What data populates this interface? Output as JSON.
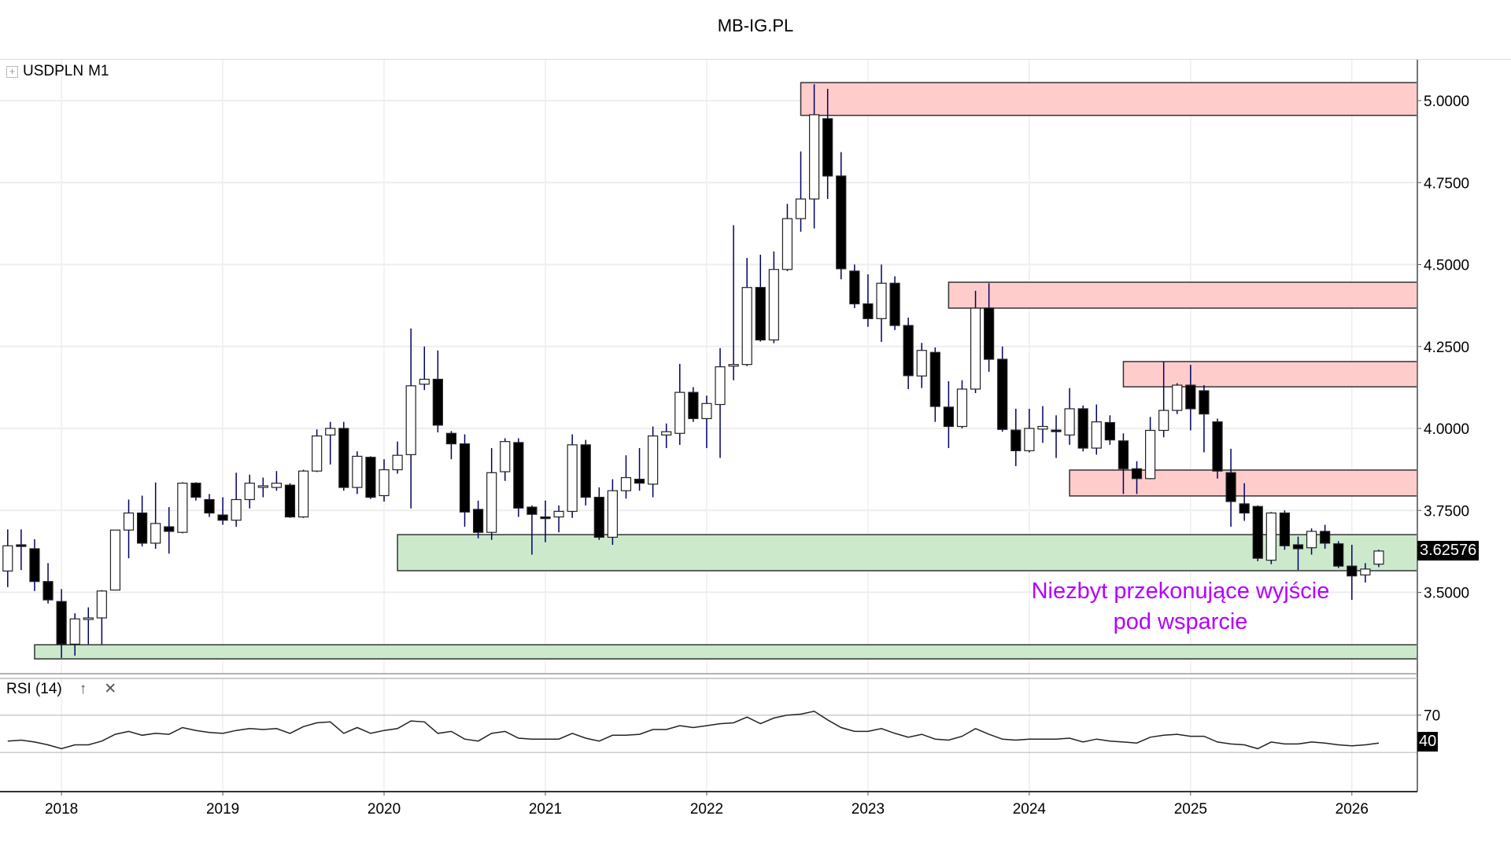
{
  "header": {
    "title": "MB-IG.PL"
  },
  "legend": {
    "expand_icon": "plus-box-icon",
    "symbol": "USDPLN",
    "timeframe": "M1"
  },
  "rsi_legend": {
    "label": "RSI (14)",
    "up_icon": "arrow-up-icon",
    "close_icon": "close-icon"
  },
  "annotation": {
    "line1": "Niezbyt przekonujące wyjście",
    "line2": "pod wsparcie",
    "color": "#b400ff"
  },
  "chart_data": [
    {
      "type": "candlestick",
      "symbol": "USDPLN",
      "timeframe": "M1",
      "y_ticks": [
        "5.0000",
        "4.7500",
        "4.5000",
        "4.2500",
        "4.0000",
        "3.7500",
        "3.5000"
      ],
      "x_ticks": [
        "2018",
        "2019",
        "2020",
        "2021",
        "2022",
        "2023",
        "2024",
        "2025",
        "2026"
      ],
      "last_price": "3.62576",
      "colors": {
        "up_body": "#ffffff",
        "down_body": "#000000",
        "wick": "#000066",
        "resistance_zone": "#ffcccc",
        "support_zone": "#cce9cc"
      },
      "zones": [
        {
          "kind": "resistance",
          "from": "2022-08",
          "low": 4.955,
          "high": 5.055
        },
        {
          "kind": "resistance",
          "from": "2023-07",
          "low": 4.367,
          "high": 4.446
        },
        {
          "kind": "resistance",
          "from": "2024-08",
          "low": 4.127,
          "high": 4.204
        },
        {
          "kind": "resistance",
          "from": "2024-04",
          "low": 3.794,
          "high": 3.873
        },
        {
          "kind": "support",
          "from": "2020-02",
          "low": 3.566,
          "high": 3.676
        },
        {
          "kind": "support",
          "from": "2017-11",
          "low": 3.297,
          "high": 3.34
        }
      ],
      "candles_format": [
        "month",
        "open",
        "high",
        "low",
        "close"
      ],
      "candles": [
        [
          "2017-09",
          3.565,
          3.692,
          3.516,
          3.642
        ],
        [
          "2017-10",
          3.645,
          3.692,
          3.568,
          3.64
        ],
        [
          "2017-11",
          3.633,
          3.662,
          3.504,
          3.533
        ],
        [
          "2017-12",
          3.533,
          3.589,
          3.466,
          3.477
        ],
        [
          "2018-01",
          3.472,
          3.51,
          3.3,
          3.342
        ],
        [
          "2018-02",
          3.342,
          3.436,
          3.307,
          3.419
        ],
        [
          "2018-03",
          3.42,
          3.454,
          3.342,
          3.422
        ],
        [
          "2018-04",
          3.422,
          3.507,
          3.342,
          3.504
        ],
        [
          "2018-05",
          3.507,
          3.69,
          3.507,
          3.69
        ],
        [
          "2018-06",
          3.69,
          3.783,
          3.604,
          3.742
        ],
        [
          "2018-07",
          3.742,
          3.795,
          3.64,
          3.65
        ],
        [
          "2018-08",
          3.65,
          3.835,
          3.633,
          3.71
        ],
        [
          "2018-09",
          3.7,
          3.76,
          3.618,
          3.686
        ],
        [
          "2018-10",
          3.683,
          3.836,
          3.68,
          3.833
        ],
        [
          "2018-11",
          3.833,
          3.836,
          3.78,
          3.79
        ],
        [
          "2018-12",
          3.783,
          3.8,
          3.73,
          3.742
        ],
        [
          "2019-01",
          3.736,
          3.79,
          3.706,
          3.72
        ],
        [
          "2019-02",
          3.72,
          3.865,
          3.7,
          3.783
        ],
        [
          "2019-03",
          3.783,
          3.859,
          3.756,
          3.833
        ],
        [
          "2019-04",
          3.823,
          3.85,
          3.79,
          3.825
        ],
        [
          "2019-05",
          3.82,
          3.87,
          3.81,
          3.833
        ],
        [
          "2019-06",
          3.827,
          3.833,
          3.727,
          3.73
        ],
        [
          "2019-07",
          3.73,
          3.874,
          3.727,
          3.87
        ],
        [
          "2019-08",
          3.87,
          3.997,
          3.867,
          3.977
        ],
        [
          "2019-09",
          3.98,
          4.02,
          3.89,
          4.0
        ],
        [
          "2019-10",
          4.0,
          4.02,
          3.81,
          3.82
        ],
        [
          "2019-11",
          3.82,
          3.93,
          3.8,
          3.915
        ],
        [
          "2019-12",
          3.912,
          3.915,
          3.785,
          3.79
        ],
        [
          "2020-01",
          3.795,
          3.906,
          3.777,
          3.874
        ],
        [
          "2020-02",
          3.874,
          3.96,
          3.862,
          3.918
        ],
        [
          "2020-03",
          3.92,
          4.305,
          3.756,
          4.13
        ],
        [
          "2020-04",
          4.135,
          4.25,
          4.117,
          4.15
        ],
        [
          "2020-05",
          4.15,
          4.238,
          3.988,
          4.01
        ],
        [
          "2020-06",
          3.985,
          3.992,
          3.906,
          3.953
        ],
        [
          "2020-07",
          3.953,
          3.982,
          3.7,
          3.745
        ],
        [
          "2020-08",
          3.753,
          3.78,
          3.665,
          3.683
        ],
        [
          "2020-09",
          3.683,
          3.94,
          3.66,
          3.865
        ],
        [
          "2020-10",
          3.868,
          3.97,
          3.84,
          3.96
        ],
        [
          "2020-11",
          3.957,
          3.97,
          3.73,
          3.757
        ],
        [
          "2020-12",
          3.76,
          3.765,
          3.615,
          3.738
        ],
        [
          "2021-01",
          3.73,
          3.78,
          3.653,
          3.725
        ],
        [
          "2021-02",
          3.73,
          3.765,
          3.683,
          3.747
        ],
        [
          "2021-03",
          3.747,
          3.982,
          3.727,
          3.95
        ],
        [
          "2021-04",
          3.95,
          3.965,
          3.765,
          3.79
        ],
        [
          "2021-05",
          3.79,
          3.82,
          3.66,
          3.668
        ],
        [
          "2021-06",
          3.668,
          3.845,
          3.645,
          3.81
        ],
        [
          "2021-07",
          3.81,
          3.918,
          3.786,
          3.85
        ],
        [
          "2021-08",
          3.845,
          3.94,
          3.81,
          3.833
        ],
        [
          "2021-09",
          3.83,
          4.006,
          3.79,
          3.977
        ],
        [
          "2021-10",
          3.98,
          4.015,
          3.94,
          3.99
        ],
        [
          "2021-11",
          3.985,
          4.197,
          3.95,
          4.11
        ],
        [
          "2021-12",
          4.11,
          4.126,
          4.02,
          4.03
        ],
        [
          "2022-01",
          4.03,
          4.1,
          3.94,
          4.076
        ],
        [
          "2022-02",
          4.073,
          4.245,
          3.91,
          4.188
        ],
        [
          "2022-03",
          4.19,
          4.62,
          4.147,
          4.195
        ],
        [
          "2022-04",
          4.195,
          4.52,
          4.19,
          4.43
        ],
        [
          "2022-05",
          4.43,
          4.53,
          4.265,
          4.27
        ],
        [
          "2022-06",
          4.27,
          4.54,
          4.26,
          4.485
        ],
        [
          "2022-07",
          4.485,
          4.685,
          4.48,
          4.64
        ],
        [
          "2022-08",
          4.64,
          4.845,
          4.6,
          4.7
        ],
        [
          "2022-09",
          4.7,
          5.05,
          4.61,
          4.957
        ],
        [
          "2022-10",
          4.945,
          5.036,
          4.7,
          4.77
        ],
        [
          "2022-11",
          4.77,
          4.843,
          4.455,
          4.487
        ],
        [
          "2022-12",
          4.48,
          4.5,
          4.367,
          4.38
        ],
        [
          "2023-01",
          4.38,
          4.47,
          4.31,
          4.335
        ],
        [
          "2023-02",
          4.335,
          4.5,
          4.264,
          4.443
        ],
        [
          "2023-03",
          4.443,
          4.464,
          4.3,
          4.314
        ],
        [
          "2023-04",
          4.314,
          4.338,
          4.12,
          4.161
        ],
        [
          "2023-05",
          4.16,
          4.261,
          4.123,
          4.238
        ],
        [
          "2023-06",
          4.232,
          4.247,
          4.02,
          4.067
        ],
        [
          "2023-07",
          4.065,
          4.144,
          3.94,
          4.006
        ],
        [
          "2023-08",
          4.006,
          4.147,
          4.0,
          4.12
        ],
        [
          "2023-09",
          4.12,
          4.42,
          4.108,
          4.367
        ],
        [
          "2023-10",
          4.367,
          4.443,
          4.173,
          4.211
        ],
        [
          "2023-11",
          4.211,
          4.25,
          3.99,
          3.997
        ],
        [
          "2023-12",
          3.995,
          4.06,
          3.885,
          3.932
        ],
        [
          "2024-01",
          3.932,
          4.06,
          3.927,
          4.0
        ],
        [
          "2024-02",
          3.998,
          4.068,
          3.956,
          4.006
        ],
        [
          "2024-03",
          3.995,
          4.04,
          3.91,
          3.993
        ],
        [
          "2024-04",
          3.98,
          4.123,
          3.95,
          4.06
        ],
        [
          "2024-05",
          4.06,
          4.07,
          3.93,
          3.94
        ],
        [
          "2024-06",
          3.94,
          4.073,
          3.92,
          4.02
        ],
        [
          "2024-07",
          4.018,
          4.04,
          3.95,
          3.965
        ],
        [
          "2024-08",
          3.962,
          3.985,
          3.8,
          3.877
        ],
        [
          "2024-09",
          3.877,
          3.9,
          3.8,
          3.847
        ],
        [
          "2024-10",
          3.847,
          4.035,
          3.845,
          3.994
        ],
        [
          "2024-11",
          3.994,
          4.203,
          3.973,
          4.055
        ],
        [
          "2024-12",
          4.055,
          4.138,
          4.044,
          4.132
        ],
        [
          "2025-01",
          4.132,
          4.194,
          3.994,
          4.06
        ],
        [
          "2025-02",
          4.115,
          4.132,
          3.927,
          4.044
        ],
        [
          "2025-03",
          4.02,
          4.03,
          3.847,
          3.87
        ],
        [
          "2025-04",
          3.865,
          3.938,
          3.7,
          3.777
        ],
        [
          "2025-05",
          3.77,
          3.833,
          3.718,
          3.742
        ],
        [
          "2025-06",
          3.762,
          3.765,
          3.595,
          3.604
        ],
        [
          "2025-07",
          3.598,
          3.745,
          3.586,
          3.742
        ],
        [
          "2025-08",
          3.742,
          3.75,
          3.63,
          3.642
        ],
        [
          "2025-09",
          3.645,
          3.67,
          3.568,
          3.633
        ],
        [
          "2025-10",
          3.636,
          3.695,
          3.615,
          3.686
        ],
        [
          "2025-11",
          3.686,
          3.706,
          3.633,
          3.65
        ],
        [
          "2025-12",
          3.648,
          3.656,
          3.574,
          3.58
        ],
        [
          "2026-01",
          3.58,
          3.645,
          3.477,
          3.55
        ],
        [
          "2026-02",
          3.553,
          3.589,
          3.53,
          3.571
        ],
        [
          "2026-03",
          3.586,
          3.63,
          3.577,
          3.626
        ]
      ]
    },
    {
      "type": "line",
      "name": "RSI (14)",
      "y_ticks": [
        "70"
      ],
      "levels": [
        70,
        30
      ],
      "ylim": [
        0,
        100
      ],
      "last_value": "40",
      "values": [
        42.3,
        43.3,
        41.3,
        38.2,
        34.1,
        38.2,
        38.2,
        42.3,
        49.5,
        52.6,
        48.5,
        50.5,
        49.5,
        56.7,
        53.6,
        51.5,
        50.5,
        53.6,
        55.6,
        54.6,
        55.6,
        50.5,
        57.7,
        61.8,
        62.8,
        50.5,
        56.7,
        50.5,
        53.6,
        55.6,
        63.8,
        62.8,
        50.5,
        52.6,
        44.4,
        42.3,
        50.5,
        52.6,
        45.4,
        44.4,
        44.4,
        44.4,
        50.5,
        45.4,
        42.3,
        48.5,
        48.5,
        49.5,
        54.6,
        54.6,
        58.7,
        56.7,
        58.7,
        60.8,
        61.8,
        67.9,
        60.8,
        66.9,
        70.0,
        71.0,
        74.1,
        64.9,
        56.7,
        52.6,
        52.6,
        55.6,
        50.5,
        46.4,
        49.5,
        44.4,
        43.3,
        47.4,
        55.6,
        49.5,
        44.4,
        43.3,
        44.4,
        44.4,
        44.4,
        45.4,
        41.3,
        44.4,
        42.3,
        41.3,
        40.2,
        46.4,
        48.5,
        49.5,
        47.4,
        47.4,
        41.3,
        39.2,
        38.2,
        34.1,
        41.3,
        39.2,
        39.2,
        41.3,
        40.2,
        38.2,
        37.2,
        38.2,
        40.2
      ]
    }
  ]
}
